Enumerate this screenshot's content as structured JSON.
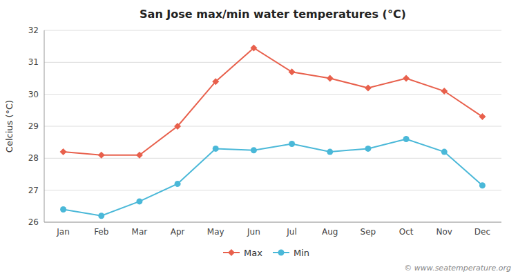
{
  "chart_data": {
    "type": "line",
    "title": "San Jose max/min water temperatures (°C)",
    "ylabel": "Celcius (°C)",
    "categories": [
      "Jan",
      "Feb",
      "Mar",
      "Apr",
      "May",
      "Jun",
      "Jul",
      "Aug",
      "Sep",
      "Oct",
      "Nov",
      "Dec"
    ],
    "series": [
      {
        "name": "Max",
        "color": "#e8604c",
        "marker": "diamond",
        "values": [
          28.2,
          28.1,
          28.1,
          29.0,
          30.4,
          31.45,
          30.7,
          30.5,
          30.2,
          30.5,
          30.1,
          29.3
        ]
      },
      {
        "name": "Min",
        "color": "#4ab8d8",
        "marker": "circle",
        "values": [
          26.4,
          26.2,
          26.65,
          27.2,
          28.3,
          28.25,
          28.45,
          28.2,
          28.3,
          28.6,
          28.2,
          27.15
        ]
      }
    ],
    "ylim": [
      26,
      32
    ],
    "yticks": [
      26,
      27,
      28,
      29,
      30,
      31,
      32
    ],
    "grid": true,
    "legend": "bottom",
    "annotations": [
      "© www.seatemperature.org"
    ]
  }
}
